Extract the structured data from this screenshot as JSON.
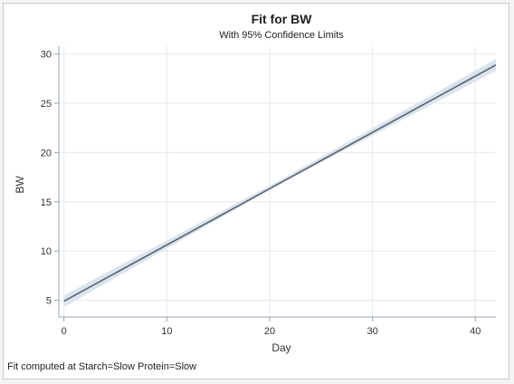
{
  "chart_data": {
    "type": "line",
    "title": "Fit for BW",
    "subtitle": "With 95% Confidence Limits",
    "xlabel": "Day",
    "ylabel": "BW",
    "footnote": "Fit computed at Starch=Slow Protein=Slow",
    "xlim": [
      -0.5,
      42
    ],
    "ylim": [
      3.3,
      30.8
    ],
    "x_ticks": [
      0,
      10,
      20,
      30,
      40
    ],
    "y_ticks": [
      5,
      10,
      15,
      20,
      25,
      30
    ],
    "grid": true,
    "series": [
      {
        "role": "fit",
        "x": [
          0,
          42
        ],
        "y": [
          4.9,
          28.9
        ]
      },
      {
        "role": "confidence-band",
        "x": [
          0,
          21,
          42
        ],
        "lower": [
          4.3,
          16.8,
          28.3
        ],
        "upper": [
          5.5,
          17.2,
          29.5
        ]
      }
    ],
    "colors": {
      "fit_line": "#5a6270",
      "band_fill": "#dbe3ee",
      "grid": "#e6e9ee",
      "axis": "#9aa3b5"
    }
  }
}
